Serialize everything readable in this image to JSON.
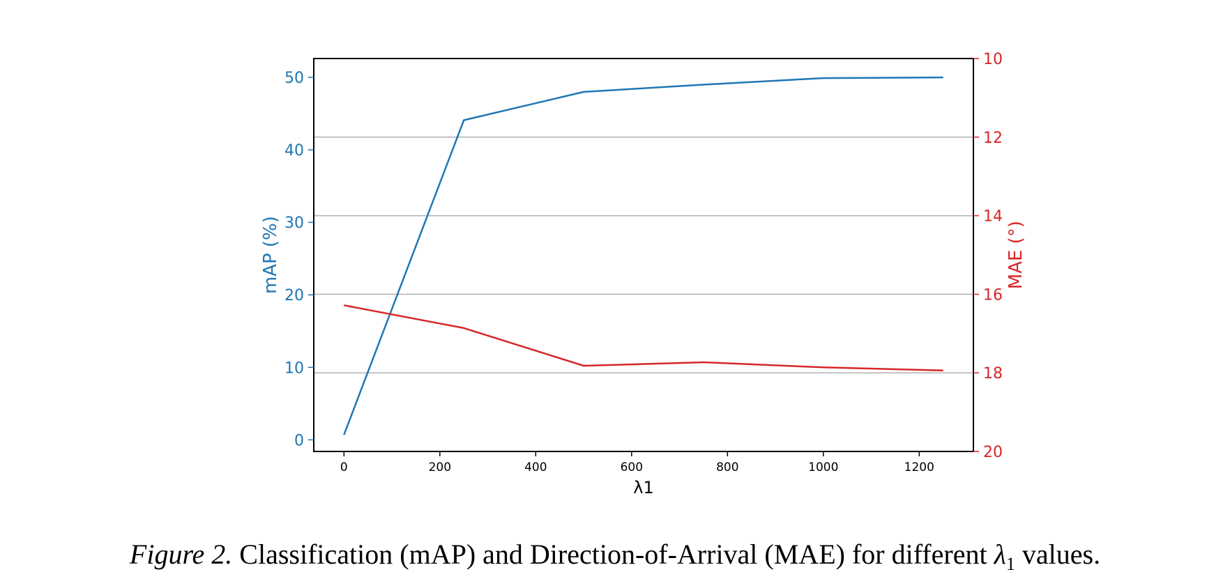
{
  "chart_data": {
    "type": "line",
    "x": [
      0,
      250,
      500,
      750,
      1000,
      1250
    ],
    "xlabel": "λ1",
    "xticks": [
      "0",
      "200",
      "400",
      "600",
      "800",
      "1000",
      "1200"
    ],
    "xlim": [
      -63,
      1313
    ],
    "axes": {
      "left": {
        "label": "mAP (%)",
        "ylim": [
          -1.6,
          52.6
        ],
        "ticks": [
          "0",
          "10",
          "20",
          "30",
          "40",
          "50"
        ],
        "color": "#1f77b4"
      },
      "right": {
        "label": "MAE (°)",
        "ylim": [
          10,
          20
        ],
        "inverted": true,
        "ticks": [
          "10",
          "12",
          "14",
          "16",
          "18",
          "20"
        ],
        "color": "#d62728"
      }
    },
    "series": [
      {
        "axis": "left",
        "color": "#1f77b4",
        "values": [
          0.7,
          44.1,
          48.0,
          49.0,
          49.9,
          50.0
        ]
      },
      {
        "axis": "right",
        "color": "#d62728",
        "values": [
          16.28,
          16.86,
          17.82,
          17.73,
          17.86,
          17.94
        ]
      }
    ],
    "grid": "horizontal lines at right-axis ticks",
    "legend": "none"
  },
  "caption": {
    "figure_label": "Figure 2.",
    "text_before": "Classification (mAP) and Direction-of-Arrival (MAE) for different",
    "symbol": "λ",
    "subscript": "1",
    "text_after": "values."
  }
}
